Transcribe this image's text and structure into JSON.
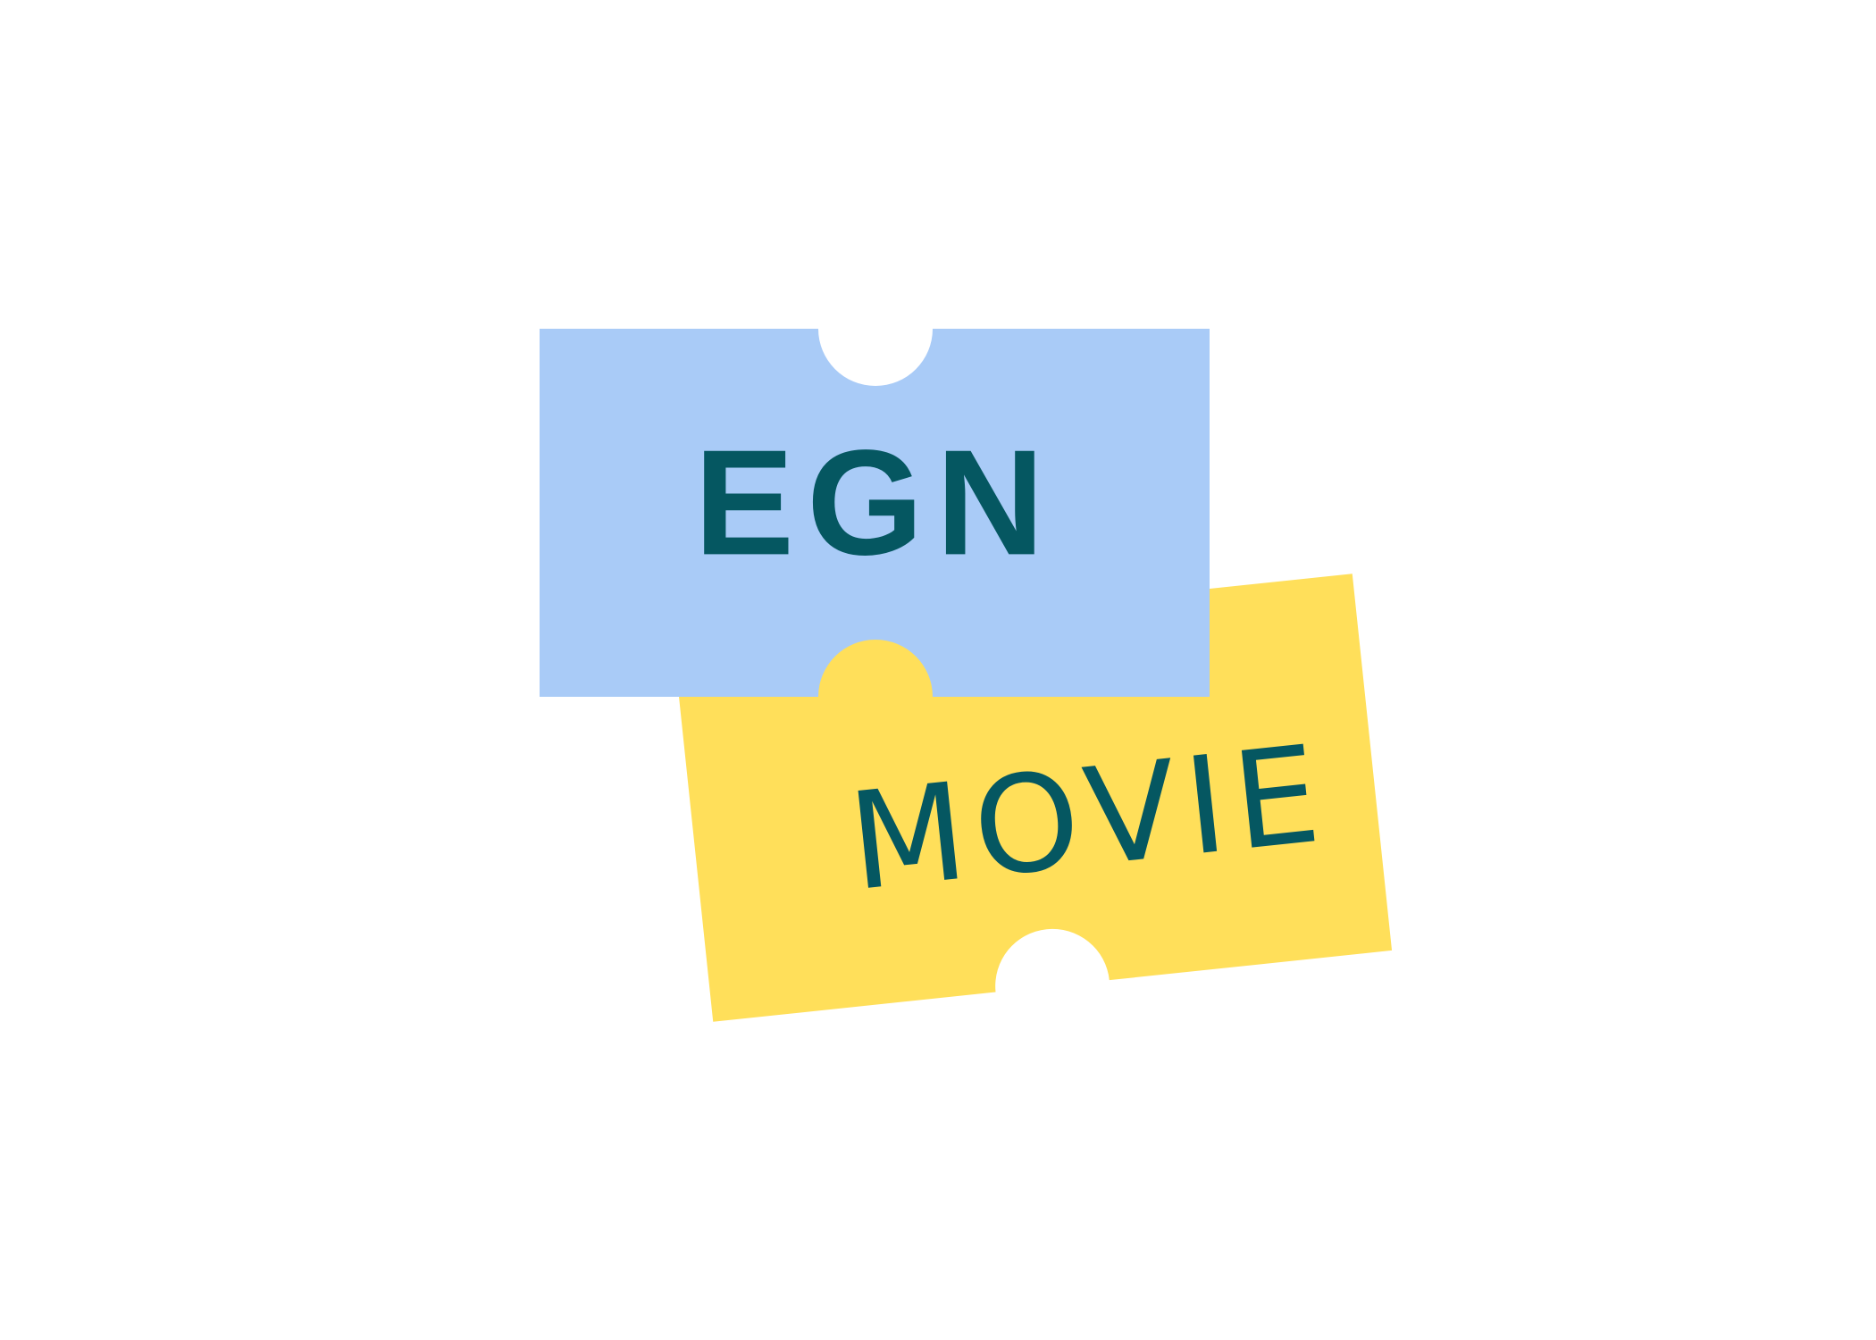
{
  "logo": {
    "primary_word": "EGN",
    "secondary_word": "MOVIE",
    "icon_name": "movie-tickets-icon"
  },
  "colors": {
    "background": "#ffffff",
    "ticket_back": "#ffdf5a",
    "ticket_front": "#a9cbf7",
    "text": "#055761"
  }
}
